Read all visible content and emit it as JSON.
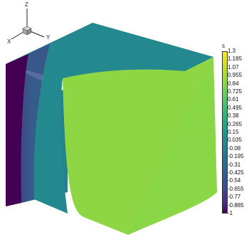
{
  "axes_triad": {
    "x_label": "X",
    "y_label": "Y",
    "z_label": "Z"
  },
  "colorbar": {
    "variable": "s",
    "colormap": "viridis",
    "min": -1,
    "max": 1.3,
    "ticks": [
      "1.3",
      "1.185",
      "1.07",
      "0.955",
      "0.84",
      "0.725",
      "0.61",
      "0.495",
      "0.38",
      "0.265",
      "0.15",
      "0.035",
      "-0.08",
      "-0.195",
      "-0.31",
      "-0.425",
      "-0.54",
      "-0.655",
      "-0.77",
      "-0.885",
      "-1"
    ],
    "colors": [
      "#fde725",
      "#e0e31a",
      "#c3dd23",
      "#a5db36",
      "#89d548",
      "#6ece58",
      "#56c667",
      "#40bd72",
      "#2eb37c",
      "#20a684",
      "#1f998a",
      "#228c8d",
      "#25818e",
      "#28768e",
      "#2c6b8e",
      "#31608d",
      "#37568c",
      "#3e4a89",
      "#443a83",
      "#472a7a",
      "#440154"
    ]
  },
  "faces": {
    "front_left_colors": [
      "#440154",
      "#3b4a8a",
      "#21928c",
      "#31688e"
    ],
    "front_right_color": "#8fd645",
    "top_colors": [
      "#26818e",
      "#2a768e"
    ]
  }
}
